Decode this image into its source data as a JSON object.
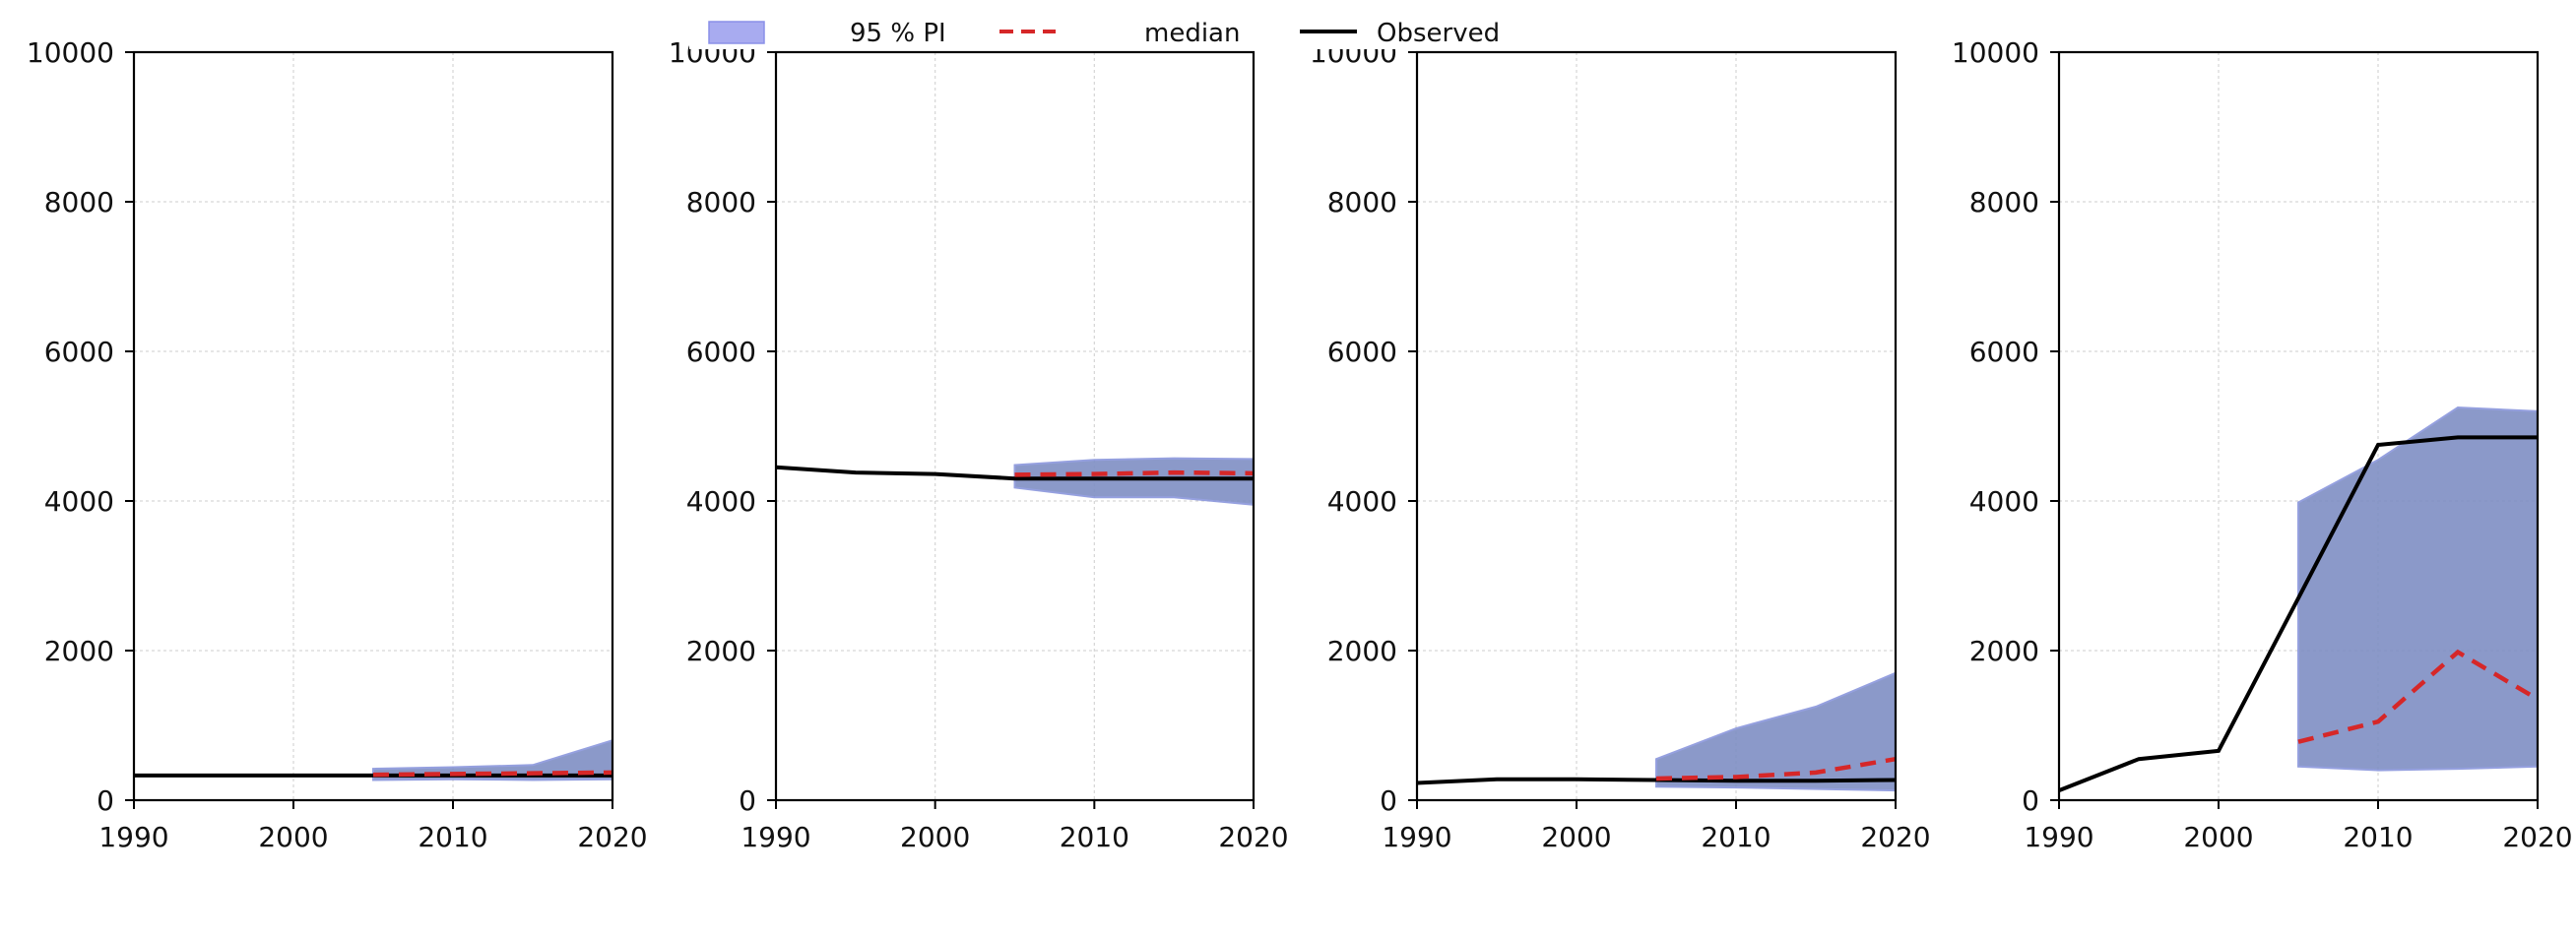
{
  "legend": {
    "items": [
      {
        "label": "95 % PI",
        "kind": "band",
        "color": "#a8abf0",
        "edge": "#8a90e8"
      },
      {
        "label": "median",
        "kind": "dashed",
        "color": "#d62728"
      },
      {
        "label": "Observed",
        "kind": "line",
        "color": "#000000"
      }
    ]
  },
  "colors": {
    "band_fill": "#7f8fc4",
    "band_edge": "#8a96dc",
    "median": "#d62728",
    "observed": "#000000",
    "grid": "#d6d6d6"
  },
  "chart_data": [
    {
      "type": "area",
      "xlim": [
        1990,
        2020
      ],
      "ylim": [
        0,
        10000
      ],
      "xticks": [
        1990,
        2000,
        2010,
        2020
      ],
      "yticks": [
        0,
        2000,
        4000,
        6000,
        8000,
        10000
      ],
      "grid": true,
      "series": [
        {
          "name": "Observed",
          "x": [
            1990,
            1995,
            2000,
            2005,
            2010,
            2015,
            2020
          ],
          "values": [
            330,
            330,
            330,
            330,
            330,
            330,
            330
          ]
        },
        {
          "name": "median",
          "x": [
            2005,
            2010,
            2015,
            2020
          ],
          "values": [
            340,
            350,
            360,
            370
          ]
        },
        {
          "name": "95 % PI",
          "x": [
            2005,
            2010,
            2015,
            2020
          ],
          "lower": [
            270,
            280,
            270,
            280
          ],
          "upper": [
            420,
            440,
            470,
            800
          ]
        }
      ]
    },
    {
      "type": "area",
      "xlim": [
        1990,
        2020
      ],
      "ylim": [
        0,
        10000
      ],
      "xticks": [
        1990,
        2000,
        2010,
        2020
      ],
      "yticks": [
        0,
        2000,
        4000,
        6000,
        8000,
        10000
      ],
      "grid": true,
      "series": [
        {
          "name": "Observed",
          "x": [
            1990,
            1995,
            2000,
            2005,
            2010,
            2015,
            2020
          ],
          "values": [
            4450,
            4380,
            4360,
            4300,
            4300,
            4300,
            4300
          ]
        },
        {
          "name": "median",
          "x": [
            2005,
            2010,
            2015,
            2020
          ],
          "values": [
            4350,
            4360,
            4380,
            4370
          ]
        },
        {
          "name": "95 % PI",
          "x": [
            2005,
            2010,
            2015,
            2020
          ],
          "lower": [
            4180,
            4050,
            4050,
            3950
          ],
          "upper": [
            4480,
            4550,
            4570,
            4560
          ]
        }
      ]
    },
    {
      "type": "area",
      "xlim": [
        1990,
        2020
      ],
      "ylim": [
        0,
        10000
      ],
      "xticks": [
        1990,
        2000,
        2010,
        2020
      ],
      "yticks": [
        0,
        2000,
        4000,
        6000,
        8000,
        10000
      ],
      "grid": true,
      "series": [
        {
          "name": "Observed",
          "x": [
            1990,
            1995,
            2000,
            2005,
            2010,
            2015,
            2020
          ],
          "values": [
            230,
            280,
            280,
            270,
            260,
            260,
            270
          ]
        },
        {
          "name": "median",
          "x": [
            2005,
            2010,
            2015,
            2020
          ],
          "values": [
            290,
            310,
            370,
            550
          ]
        },
        {
          "name": "95 % PI",
          "x": [
            2005,
            2010,
            2015,
            2020
          ],
          "lower": [
            180,
            170,
            150,
            130
          ],
          "upper": [
            550,
            960,
            1250,
            1700
          ]
        }
      ]
    },
    {
      "type": "area",
      "xlim": [
        1990,
        2020
      ],
      "ylim": [
        0,
        10000
      ],
      "xticks": [
        1990,
        2000,
        2010,
        2020
      ],
      "yticks": [
        0,
        2000,
        4000,
        6000,
        8000,
        10000
      ],
      "grid": true,
      "series": [
        {
          "name": "Observed",
          "x": [
            1990,
            1995,
            2000,
            2005,
            2010,
            2015,
            2020
          ],
          "values": [
            130,
            550,
            660,
            2700,
            4750,
            4850,
            4850
          ]
        },
        {
          "name": "median",
          "x": [
            2005,
            2010,
            2015,
            2020
          ],
          "values": [
            780,
            1050,
            1980,
            1350
          ]
        },
        {
          "name": "95 % PI",
          "x": [
            2005,
            2010,
            2015,
            2020
          ],
          "lower": [
            450,
            400,
            420,
            450
          ],
          "upper": [
            3980,
            4550,
            5250,
            5200
          ]
        }
      ]
    }
  ]
}
